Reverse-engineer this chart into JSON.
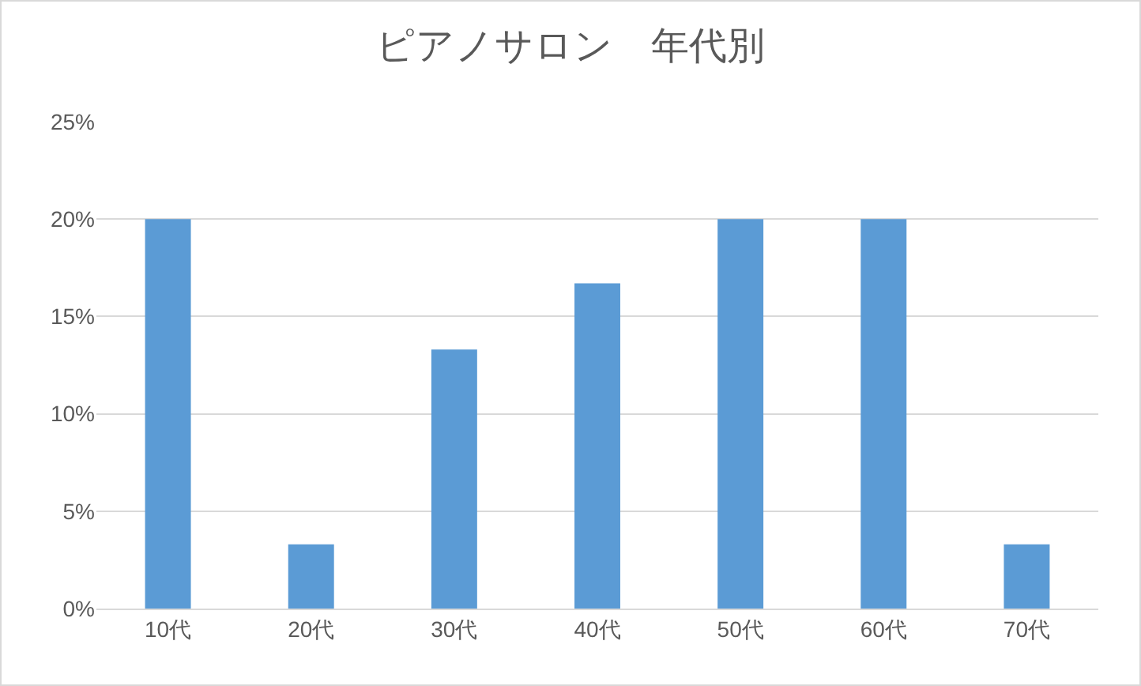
{
  "chart_data": {
    "type": "bar",
    "title": "ピアノサロン　年代別",
    "categories": [
      "10代",
      "20代",
      "30代",
      "40代",
      "50代",
      "60代",
      "70代"
    ],
    "values": [
      20,
      3.3,
      13.3,
      16.7,
      20,
      20,
      3.3
    ],
    "color": "#5b9bd5",
    "ylim": [
      0,
      25
    ],
    "yticks": [
      {
        "value": 0,
        "label": "0%"
      },
      {
        "value": 5,
        "label": "5%"
      },
      {
        "value": 10,
        "label": "10%"
      },
      {
        "value": 15,
        "label": "15%"
      },
      {
        "value": 20,
        "label": "20%"
      },
      {
        "value": 25,
        "label": "25%"
      }
    ],
    "grid": "y"
  }
}
